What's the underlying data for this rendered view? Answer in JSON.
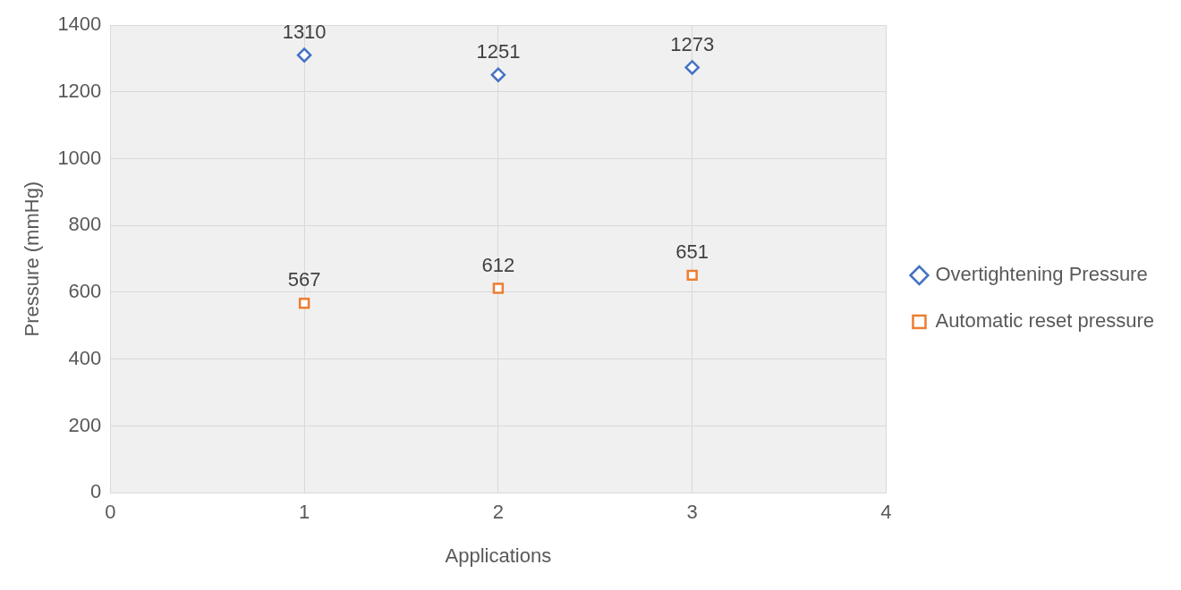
{
  "chart_data": {
    "type": "scatter",
    "xlabel": "Applications",
    "ylabel": "Pressure (mmHg)",
    "x": [
      1,
      2,
      3
    ],
    "series": [
      {
        "name": "Overtightening Pressure",
        "color": "#4472c4",
        "marker": "diamond",
        "values": [
          1310,
          1251,
          1273
        ]
      },
      {
        "name": "Automatic reset pressure",
        "color": "#ed7d31",
        "marker": "square",
        "values": [
          567,
          612,
          651
        ]
      }
    ],
    "xlim": [
      0,
      4
    ],
    "xticks": [
      0,
      1,
      2,
      3,
      4
    ],
    "ylim": [
      0,
      1400
    ],
    "yticks": [
      0,
      200,
      400,
      600,
      800,
      1000,
      1200,
      1400
    ],
    "grid": true,
    "legend": "right",
    "data_labels": true
  }
}
